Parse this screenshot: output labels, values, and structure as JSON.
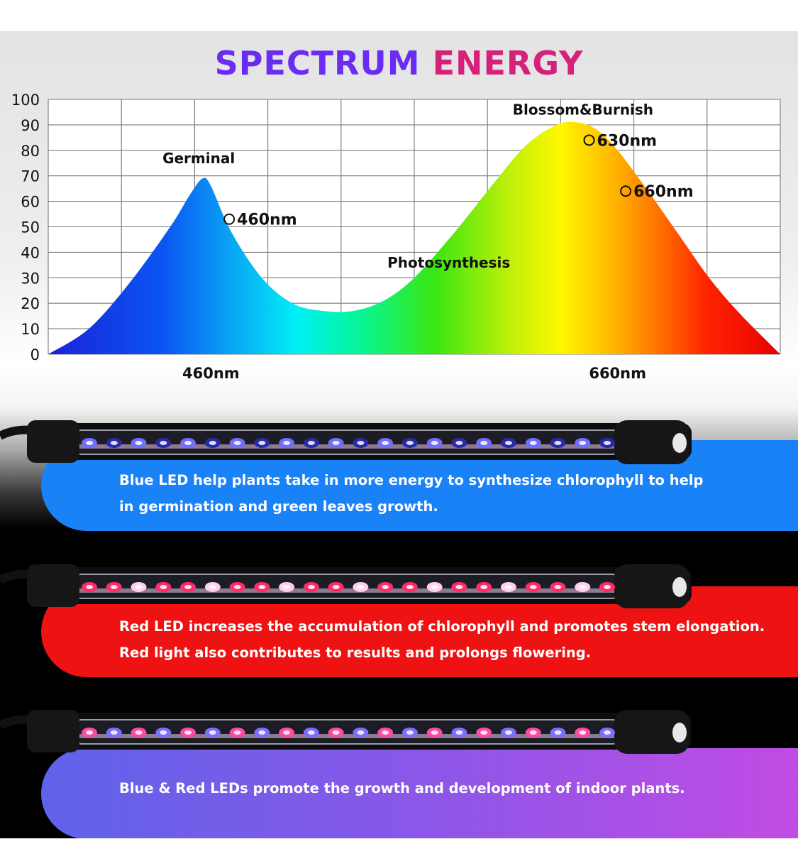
{
  "title": {
    "word1": "SPECTRUM",
    "word2": "ENERGY"
  },
  "chart_data": {
    "type": "area",
    "title": "SPECTRUM ENERGY",
    "ylim": [
      0,
      100
    ],
    "yticks": [
      "0",
      "10",
      "20",
      "30",
      "40",
      "50",
      "60",
      "70",
      "80",
      "90",
      "100"
    ],
    "grid": true,
    "x_labels": [
      {
        "text": "460nm",
        "at": 460
      },
      {
        "text": "660nm",
        "at": 660
      }
    ],
    "curve": [
      [
        380,
        0
      ],
      [
        400,
        10
      ],
      [
        420,
        28
      ],
      [
        440,
        50
      ],
      [
        450,
        63
      ],
      [
        456,
        69
      ],
      [
        460,
        66
      ],
      [
        470,
        48
      ],
      [
        485,
        30
      ],
      [
        500,
        20
      ],
      [
        515,
        17
      ],
      [
        530,
        17
      ],
      [
        545,
        21
      ],
      [
        560,
        30
      ],
      [
        580,
        48
      ],
      [
        600,
        68
      ],
      [
        615,
        82
      ],
      [
        630,
        90
      ],
      [
        640,
        91
      ],
      [
        650,
        88
      ],
      [
        660,
        80
      ],
      [
        675,
        64
      ],
      [
        690,
        47
      ],
      [
        705,
        30
      ],
      [
        720,
        16
      ],
      [
        740,
        0
      ]
    ],
    "markers": [
      {
        "text": "460nm",
        "x": 469,
        "y": 53
      },
      {
        "text": "630nm",
        "x": 646,
        "y": 84
      },
      {
        "text": "660nm",
        "x": 664,
        "y": 64
      }
    ],
    "annotations": [
      {
        "text": "Germinal",
        "x": 454,
        "y": 75
      },
      {
        "text": "Blossom&Burnish",
        "x": 643,
        "y": 94
      },
      {
        "text": "Photosynthesis",
        "x": 577,
        "y": 34
      }
    ]
  },
  "bands": [
    {
      "text_line1": "Blue LED help plants take in more energy to synthesize chlorophyll to help",
      "text_line2": "in germination and green leaves growth.",
      "color": "#1a82f7",
      "led": "blue"
    },
    {
      "text_line1": "Red LED increases the accumulation of chlorophyll and promotes stem elongation.",
      "text_line2": "Red light also contributes to results and prolongs flowering.",
      "color": "#ee1212",
      "led": "red"
    },
    {
      "text_line1": "Blue & Red LEDs promote the growth and development of indoor plants.",
      "text_line2": "",
      "color": "#a44ee6",
      "led": "mixed"
    }
  ]
}
